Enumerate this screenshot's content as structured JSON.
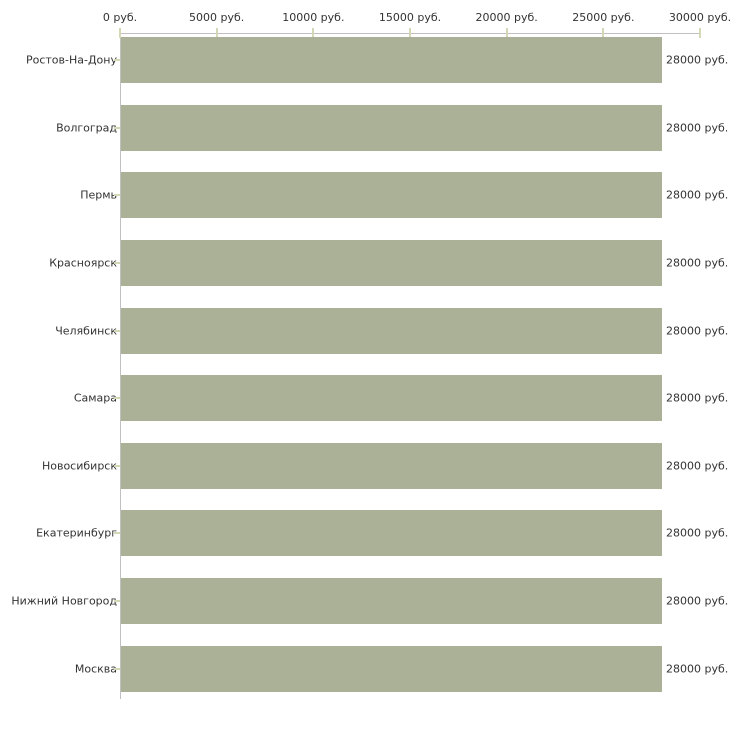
{
  "chart_data": {
    "type": "bar",
    "orientation": "horizontal",
    "title": "",
    "xlabel": "",
    "ylabel": "",
    "unit": "руб.",
    "xlim": [
      0,
      30000
    ],
    "grid": false,
    "legend": null,
    "categories": [
      "Ростов-На-Дону",
      "Волгоград",
      "Пермь",
      "Красноярск",
      "Челябинск",
      "Самара",
      "Новосибирск",
      "Екатеринбург",
      "Нижний Новгород",
      "Москва"
    ],
    "values": [
      28000,
      28000,
      28000,
      28000,
      28000,
      28000,
      28000,
      28000,
      28000,
      28000
    ],
    "bar_labels": [
      "28000 руб.",
      "28000 руб.",
      "28000 руб.",
      "28000 руб.",
      "28000 руб.",
      "28000 руб.",
      "28000 руб.",
      "28000 руб.",
      "28000 руб.",
      "28000 руб."
    ],
    "x_ticks": [
      0,
      5000,
      10000,
      15000,
      20000,
      25000,
      30000
    ],
    "x_tick_labels": [
      "0 руб.",
      "5000 руб.",
      "10000 руб.",
      "15000 руб.",
      "20000 руб.",
      "25000 руб.",
      "30000 руб."
    ]
  },
  "colors": {
    "bar": "#abb197",
    "axis_line": "#c0c0c0",
    "tick_mark": "#d4d8b4",
    "text": "#333333",
    "background": "#ffffff"
  }
}
